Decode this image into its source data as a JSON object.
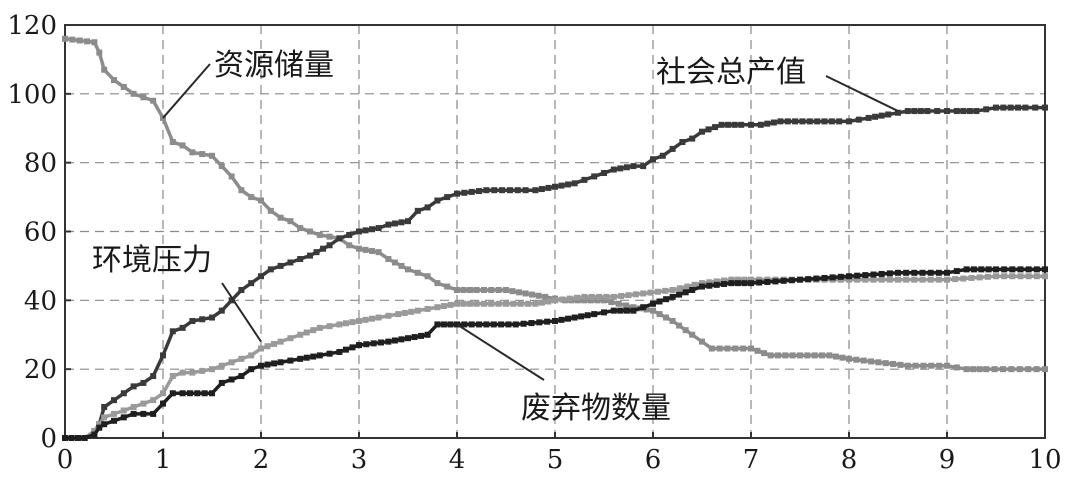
{
  "chart_data": {
    "type": "line",
    "title": "",
    "xlabel": "",
    "ylabel": "",
    "xlim": [
      0,
      10
    ],
    "ylim": [
      0,
      120
    ],
    "xticks": [
      "0",
      "1",
      "2",
      "3",
      "4",
      "5",
      "6",
      "7",
      "8",
      "9",
      "10"
    ],
    "yticks": [
      "0",
      "20",
      "40",
      "60",
      "80",
      "100",
      "120"
    ],
    "grid": true,
    "series": [
      {
        "name": "资源储量",
        "color": "#8c8c8c",
        "x": [
          0,
          0.3,
          0.35,
          0.4,
          0.5,
          0.6,
          0.7,
          0.8,
          0.9,
          1.0,
          1.1,
          1.2,
          1.3,
          1.5,
          1.6,
          1.7,
          1.8,
          1.9,
          2.0,
          2.1,
          2.2,
          2.3,
          2.4,
          2.5,
          2.6,
          2.8,
          2.9,
          3.0,
          3.2,
          3.3,
          3.5,
          3.6,
          3.7,
          3.8,
          3.9,
          4.0,
          4.2,
          4.5,
          4.7,
          4.9,
          5.1,
          5.3,
          5.5,
          5.8,
          6.0,
          6.2,
          6.4,
          6.5,
          6.6,
          7.0,
          7.2,
          7.5,
          7.8,
          8.0,
          8.3,
          8.6,
          9.0,
          9.2,
          9.4,
          10.0
        ],
        "y": [
          116,
          115,
          112,
          107,
          104,
          102,
          100,
          99,
          98,
          93,
          86,
          85,
          83,
          82,
          79,
          76,
          72,
          70,
          69,
          66,
          64,
          63,
          61,
          60,
          59,
          58,
          56,
          55,
          54,
          52,
          49,
          48,
          47,
          45,
          44,
          43,
          43,
          43,
          42,
          41,
          40,
          40,
          40,
          38,
          37,
          34,
          30,
          28,
          26,
          26,
          24,
          24,
          24,
          23,
          22,
          21,
          21,
          20,
          20,
          20
        ]
      },
      {
        "name": "社会总产值",
        "color": "#3a3a3a",
        "x": [
          0,
          0.2,
          0.3,
          0.35,
          0.4,
          0.5,
          0.6,
          0.7,
          0.8,
          0.9,
          1.0,
          1.1,
          1.2,
          1.3,
          1.5,
          1.6,
          1.7,
          1.8,
          1.9,
          2.0,
          2.1,
          2.3,
          2.4,
          2.5,
          2.7,
          2.8,
          2.9,
          3.0,
          3.2,
          3.3,
          3.5,
          3.6,
          3.7,
          3.8,
          3.9,
          4.0,
          4.3,
          4.7,
          4.8,
          5.0,
          5.2,
          5.3,
          5.4,
          5.6,
          5.8,
          5.9,
          6.0,
          6.1,
          6.2,
          6.3,
          6.4,
          6.5,
          6.7,
          6.9,
          7.0,
          7.1,
          7.3,
          7.6,
          7.9,
          8.0,
          8.2,
          8.4,
          8.6,
          8.8,
          9.0,
          9.1,
          9.3,
          9.5,
          9.8,
          10.0
        ],
        "y": [
          0,
          0,
          2,
          4,
          9,
          11,
          13,
          15,
          16,
          18,
          24,
          31,
          32,
          34,
          35,
          37,
          40,
          43,
          45,
          47,
          49,
          51,
          52,
          53,
          56,
          58,
          59,
          60,
          61,
          62,
          63,
          66,
          67,
          69,
          70,
          71,
          72,
          72,
          72,
          73,
          74,
          75,
          76,
          78,
          79,
          79,
          81,
          82,
          84,
          86,
          87,
          89,
          91,
          91,
          91,
          91,
          92,
          92,
          92,
          92,
          93,
          94,
          95,
          95,
          95,
          95,
          95,
          96,
          96,
          96
        ]
      },
      {
        "name": "环境压力",
        "color": "#9a9a9a",
        "x": [
          0,
          0.2,
          0.3,
          0.35,
          0.4,
          0.5,
          0.6,
          0.7,
          0.8,
          0.9,
          1.0,
          1.1,
          1.2,
          1.3,
          1.5,
          1.6,
          1.7,
          1.8,
          1.9,
          2.0,
          2.2,
          2.4,
          2.6,
          2.8,
          3.0,
          3.2,
          3.4,
          3.6,
          3.8,
          4.0,
          4.2,
          4.5,
          4.8,
          5.0,
          5.3,
          5.6,
          5.9,
          6.2,
          6.5,
          6.8,
          7.0,
          7.5,
          8.0,
          8.5,
          9.0,
          9.5,
          10.0
        ],
        "y": [
          0,
          0,
          2,
          4,
          6,
          7,
          8,
          9,
          10,
          11,
          13,
          18,
          19,
          19,
          20,
          21,
          22,
          23,
          24,
          26,
          28,
          30,
          32,
          33,
          34,
          35,
          36,
          37,
          38,
          39,
          39,
          39,
          39,
          40,
          41,
          41,
          42,
          43,
          45,
          46,
          46,
          46,
          46,
          46,
          46,
          47,
          47
        ]
      },
      {
        "name": "废弃物数量",
        "color": "#1f1f1f",
        "x": [
          0,
          0.2,
          0.3,
          0.35,
          0.4,
          0.5,
          0.6,
          0.7,
          0.8,
          0.9,
          1.0,
          1.1,
          1.2,
          1.5,
          1.6,
          1.8,
          1.9,
          2.0,
          2.2,
          2.4,
          2.6,
          2.8,
          3.0,
          3.3,
          3.5,
          3.7,
          3.8,
          4.0,
          4.3,
          4.6,
          5.0,
          5.2,
          5.4,
          5.6,
          5.8,
          5.9,
          6.0,
          6.2,
          6.4,
          6.5,
          6.8,
          7.0,
          7.5,
          8.0,
          8.5,
          9.0,
          9.2,
          9.5,
          10.0
        ],
        "y": [
          0,
          0,
          1,
          3,
          4,
          5,
          6,
          7,
          7,
          7,
          10,
          13,
          13,
          13,
          16,
          18,
          20,
          21,
          22,
          23,
          24,
          25,
          27,
          28,
          29,
          30,
          33,
          33,
          33,
          33,
          34,
          35,
          36,
          37,
          37,
          38,
          39,
          41,
          43,
          44,
          45,
          45,
          46,
          47,
          48,
          48,
          49,
          49,
          49
        ]
      }
    ],
    "annotations": [
      {
        "text": "资源储量",
        "series": "资源储量",
        "at_x": 1.0,
        "at_y": 93
      },
      {
        "text": "社会总产值",
        "series": "社会总产值",
        "at_x": 8.5,
        "at_y": 95
      },
      {
        "text": "环境压力",
        "series": "环境压力",
        "at_x": 2.0,
        "at_y": 28
      },
      {
        "text": "废弃物数量",
        "series": "废弃物数量",
        "at_x": 4.0,
        "at_y": 33
      }
    ]
  }
}
